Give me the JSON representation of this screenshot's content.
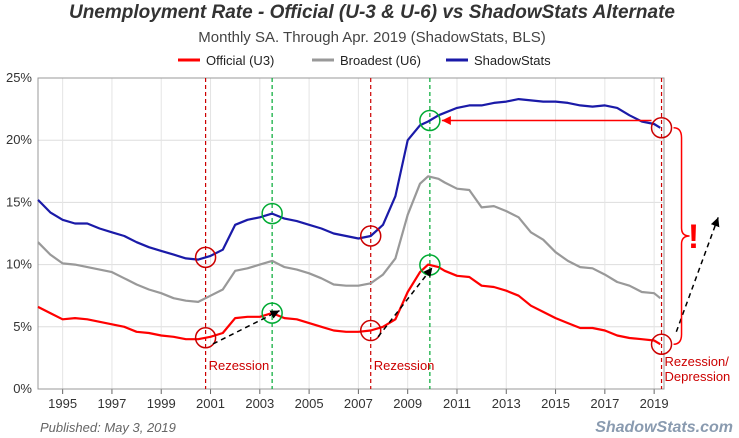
{
  "chart_data": {
    "type": "line",
    "title": "Unemployment Rate - Official (U-3 & U-6) vs ShadowStats Alternate",
    "subtitle": "Monthly SA. Through Apr. 2019  (ShadowStats, BLS)",
    "xlabel": "",
    "ylabel": "",
    "xlim": [
      1994,
      2019.4
    ],
    "ylim": [
      0,
      25
    ],
    "grid": true,
    "legend_position": "top",
    "x_ticks": [
      "1995",
      "1997",
      "1999",
      "2001",
      "2003",
      "2005",
      "2007",
      "2009",
      "2011",
      "2013",
      "2015",
      "2017",
      "2019"
    ],
    "y_ticks": [
      "0%",
      "5%",
      "10%",
      "15%",
      "20%",
      "25%"
    ],
    "colors": {
      "u3": "#ff0000",
      "u6": "#999999",
      "shadowstats": "#1a1aa8",
      "annotation": "#cc0000",
      "green": "#00aa33"
    },
    "series": [
      {
        "name": "Official (U3)",
        "x": [
          1994.0,
          1994.5,
          1995.0,
          1995.5,
          1996.0,
          1996.5,
          1997.0,
          1997.5,
          1998.0,
          1998.5,
          1999.0,
          1999.5,
          2000.0,
          2000.5,
          2001.0,
          2001.5,
          2002.0,
          2002.5,
          2003.0,
          2003.5,
          2004.0,
          2004.5,
          2005.0,
          2005.5,
          2006.0,
          2006.5,
          2007.0,
          2007.5,
          2008.0,
          2008.5,
          2009.0,
          2009.5,
          2009.83,
          2010.25,
          2010.5,
          2011.0,
          2011.5,
          2012.0,
          2012.5,
          2013.0,
          2013.5,
          2014.0,
          2014.5,
          2015.0,
          2015.5,
          2016.0,
          2016.5,
          2017.0,
          2017.5,
          2018.0,
          2018.5,
          2019.0,
          2019.25
        ],
        "values": [
          6.6,
          6.1,
          5.6,
          5.7,
          5.6,
          5.4,
          5.2,
          5.0,
          4.6,
          4.5,
          4.3,
          4.2,
          4.0,
          4.0,
          4.2,
          4.5,
          5.7,
          5.8,
          5.8,
          6.1,
          5.7,
          5.6,
          5.3,
          5.0,
          4.7,
          4.6,
          4.6,
          4.7,
          5.0,
          5.6,
          7.8,
          9.4,
          10.0,
          9.8,
          9.5,
          9.1,
          9.0,
          8.3,
          8.2,
          7.9,
          7.5,
          6.7,
          6.2,
          5.7,
          5.3,
          4.9,
          4.9,
          4.7,
          4.3,
          4.1,
          4.0,
          3.9,
          3.6
        ]
      },
      {
        "name": "Broadest (U6)",
        "x": [
          1994.0,
          1994.5,
          1995.0,
          1995.5,
          1996.0,
          1996.5,
          1997.0,
          1997.5,
          1998.0,
          1998.5,
          1999.0,
          1999.5,
          2000.0,
          2000.5,
          2001.0,
          2001.5,
          2002.0,
          2002.5,
          2003.0,
          2003.5,
          2004.0,
          2004.5,
          2005.0,
          2005.5,
          2006.0,
          2006.5,
          2007.0,
          2007.5,
          2008.0,
          2008.5,
          2009.0,
          2009.5,
          2009.83,
          2010.25,
          2010.5,
          2011.0,
          2011.5,
          2012.0,
          2012.5,
          2013.0,
          2013.5,
          2014.0,
          2014.5,
          2015.0,
          2015.5,
          2016.0,
          2016.5,
          2017.0,
          2017.5,
          2018.0,
          2018.5,
          2019.0,
          2019.25
        ],
        "values": [
          11.8,
          10.8,
          10.1,
          10.0,
          9.8,
          9.6,
          9.4,
          8.9,
          8.4,
          8.0,
          7.7,
          7.3,
          7.1,
          7.0,
          7.5,
          8.0,
          9.5,
          9.7,
          10.0,
          10.3,
          9.8,
          9.6,
          9.3,
          8.9,
          8.4,
          8.3,
          8.3,
          8.5,
          9.2,
          10.5,
          14.0,
          16.5,
          17.1,
          16.9,
          16.6,
          16.1,
          16.0,
          14.6,
          14.7,
          14.3,
          13.8,
          12.6,
          12.0,
          11.0,
          10.3,
          9.8,
          9.7,
          9.2,
          8.6,
          8.3,
          7.8,
          7.7,
          7.3
        ]
      },
      {
        "name": "ShadowStats",
        "x": [
          1994.0,
          1994.5,
          1995.0,
          1995.5,
          1996.0,
          1996.5,
          1997.0,
          1997.5,
          1998.0,
          1998.5,
          1999.0,
          1999.5,
          2000.0,
          2000.5,
          2001.0,
          2001.5,
          2002.0,
          2002.5,
          2003.0,
          2003.5,
          2004.0,
          2004.5,
          2005.0,
          2005.5,
          2006.0,
          2006.5,
          2007.0,
          2007.5,
          2008.0,
          2008.5,
          2009.0,
          2009.5,
          2009.83,
          2010.25,
          2010.5,
          2011.0,
          2011.5,
          2012.0,
          2012.5,
          2013.0,
          2013.5,
          2014.0,
          2014.5,
          2015.0,
          2015.5,
          2016.0,
          2016.5,
          2017.0,
          2017.5,
          2018.0,
          2018.5,
          2019.0,
          2019.25
        ],
        "values": [
          15.2,
          14.2,
          13.6,
          13.3,
          13.3,
          12.9,
          12.6,
          12.3,
          11.8,
          11.4,
          11.1,
          10.8,
          10.5,
          10.4,
          10.7,
          11.2,
          13.2,
          13.6,
          13.8,
          14.1,
          13.7,
          13.5,
          13.2,
          12.9,
          12.5,
          12.3,
          12.1,
          12.3,
          13.2,
          15.5,
          20.0,
          21.2,
          21.5,
          22.0,
          22.2,
          22.6,
          22.8,
          22.8,
          23.0,
          23.1,
          23.3,
          23.2,
          23.1,
          23.1,
          23.0,
          22.8,
          22.7,
          22.8,
          22.6,
          22.0,
          21.5,
          21.3,
          21.0
        ]
      }
    ],
    "annotations": {
      "recession_labels": [
        "Rezession",
        "Rezession",
        "Rezession/",
        "Depression"
      ],
      "exclamation": "!",
      "red_lines_x": [
        2000.8,
        2007.5,
        2019.3
      ],
      "green_lines_x": [
        2003.5,
        2009.9
      ]
    }
  },
  "footer": {
    "published": "Published: May 3, 2019",
    "brand": "ShadowStats.com"
  }
}
